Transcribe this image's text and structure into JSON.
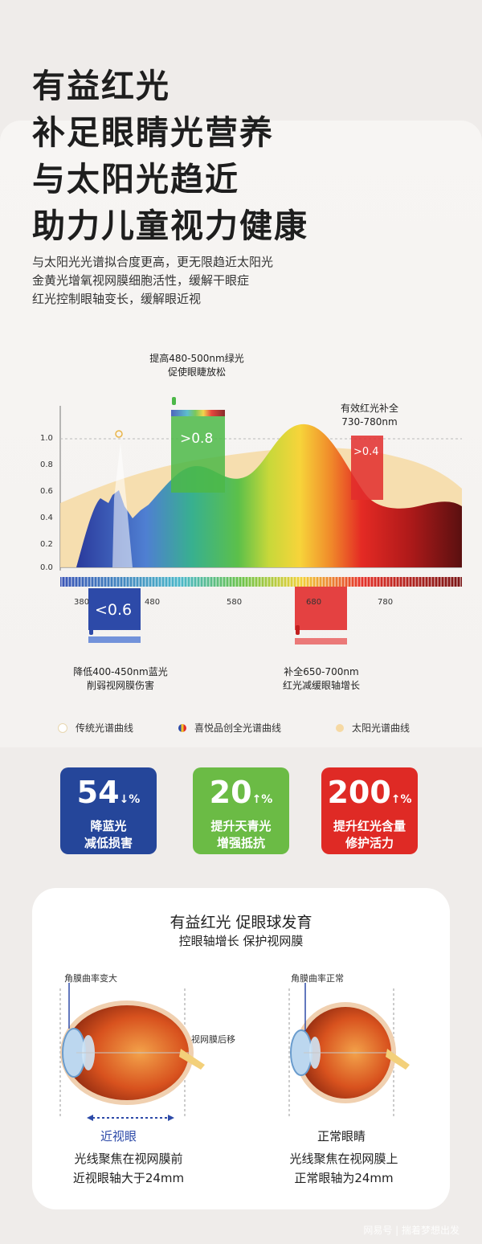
{
  "headline": [
    "有益红光",
    "补足眼睛光营养",
    "与太阳光趋近",
    "助力儿童视力健康"
  ],
  "subtitle": [
    "与太阳光光谱拟合度更高，更无限趋近太阳光",
    "金黄光增氧视网膜细胞活性，缓解干眼症",
    "红光控制眼轴变长，缓解眼近视"
  ],
  "chart": {
    "y_ticks": [
      "1.0",
      "0.8",
      "0.6",
      "0.4",
      "0.2",
      "0.0"
    ],
    "x_ticks": [
      "380",
      "480",
      "580",
      "680",
      "780"
    ],
    "green_note": [
      "提高480-500nm绿光",
      "促使眼睫放松"
    ],
    "red_note": [
      "有效红光补全",
      "730-780nm"
    ],
    "blue_note": [
      "降低400-450nm蓝光",
      "削弱视网膜伤害"
    ],
    "red2_note": [
      "补全650-700nm",
      "红光减缓眼轴增长"
    ],
    "green_box": ">0.8",
    "red_box": ">0.4",
    "blue_box": "<0.6",
    "colors": {
      "blue": "#3a4fb0",
      "green": "#4cb848",
      "red": "#e22d2d",
      "sun": "#f6d9a3"
    }
  },
  "legend": [
    "传统光谱曲线",
    "喜悦品创全光谱曲线",
    "太阳光谱曲线"
  ],
  "stats": [
    {
      "num": "54",
      "unit": "%",
      "arrow": "↓",
      "line1": "降蓝光",
      "line2": "减低损害",
      "color": "#25469a"
    },
    {
      "num": "20",
      "unit": "%",
      "arrow": "↑",
      "line1": "提升天青光",
      "line2": "增强抵抗",
      "color": "#6bbb45"
    },
    {
      "num": "200",
      "unit": "%",
      "arrow": "↑",
      "line1": "提升红光含量",
      "line2": "修护活力",
      "color": "#df2a25"
    }
  ],
  "eye": {
    "title": "有益红光 促眼球发育",
    "subtitle": "控眼轴增长 保护视网膜",
    "left_label": "角膜曲率变大",
    "left_label2": "视网膜后移",
    "right_label": "角膜曲率正常",
    "left_name": "近视眼",
    "right_name": "正常眼睛",
    "left_desc": [
      "光线聚焦在视网膜前",
      "近视眼轴大于24mm"
    ],
    "right_desc": [
      "光线聚焦在视网膜上",
      "正常眼轴为24mm"
    ]
  },
  "footer": "网易号 | 揣着梦想出发"
}
